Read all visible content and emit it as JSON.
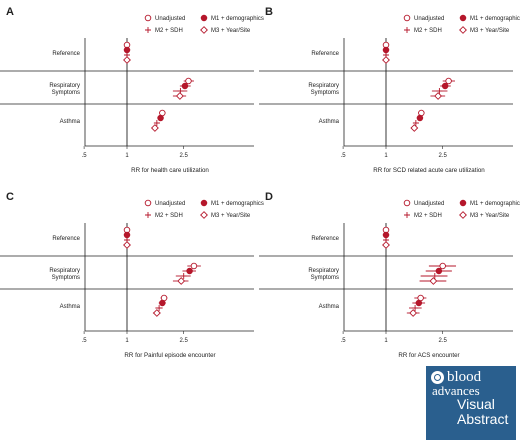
{
  "colors": {
    "accent": "#b5172b",
    "axis": "#222222",
    "logo_bg": "#2a5f8e"
  },
  "legend": {
    "unadjusted": "Unadjusted",
    "m1": "M1 + demographics",
    "m2": "M2 + SDH",
    "m3": "M3 + Year/Site"
  },
  "logo": {
    "word": "blood",
    "sub": "advances",
    "line1": "Visual",
    "line2": "Abstract"
  },
  "chart_data": [
    {
      "type": "scatter",
      "panel": "A",
      "xlabel": "RR for health care utilization",
      "xscale": "log",
      "xticks": [
        ".5",
        "1",
        "2.5"
      ],
      "categories": [
        "Reference",
        "Respiratory Symptoms",
        "Asthma"
      ],
      "reference_line": 1,
      "series": [
        {
          "name": "Unadjusted",
          "marker": "open-circle",
          "values": [
            1,
            2.7,
            1.77
          ],
          "ci": [
            [
              1,
              1
            ],
            [
              2.5,
              2.95
            ],
            [
              1.7,
              1.85
            ]
          ]
        },
        {
          "name": "M1 + demographics",
          "marker": "filled-circle",
          "values": [
            1,
            2.55,
            1.72
          ],
          "ci": [
            [
              1,
              1
            ],
            [
              2.35,
              2.8
            ],
            [
              1.65,
              1.8
            ]
          ]
        },
        {
          "name": "M2 + SDH",
          "marker": "plus",
          "values": [
            1,
            2.37,
            1.62
          ],
          "ci": [
            [
              1,
              1
            ],
            [
              2.1,
              2.65
            ],
            [
              1.55,
              1.7
            ]
          ]
        },
        {
          "name": "M3 + Year/Site",
          "marker": "open-diamond",
          "values": [
            1,
            2.35,
            1.57
          ],
          "ci": [
            [
              1,
              1
            ],
            [
              2.1,
              2.6
            ],
            [
              1.5,
              1.65
            ]
          ]
        }
      ]
    },
    {
      "type": "scatter",
      "panel": "B",
      "xlabel": "RR for SCD related acute care utilization",
      "xscale": "log",
      "xticks": [
        ".5",
        "1",
        "2.5"
      ],
      "categories": [
        "Reference",
        "Respiratory Symptoms",
        "Asthma"
      ],
      "reference_line": 1,
      "series": [
        {
          "name": "Unadjusted",
          "marker": "open-circle",
          "values": [
            1,
            2.75,
            1.77
          ],
          "ci": [
            [
              1,
              1
            ],
            [
              2.5,
              3.05
            ],
            [
              1.7,
              1.85
            ]
          ]
        },
        {
          "name": "M1 + demographics",
          "marker": "filled-circle",
          "values": [
            1,
            2.6,
            1.73
          ],
          "ci": [
            [
              1,
              1
            ],
            [
              2.4,
              2.85
            ],
            [
              1.65,
              1.8
            ]
          ]
        },
        {
          "name": "M2 + SDH",
          "marker": "plus",
          "values": [
            1,
            2.37,
            1.62
          ],
          "ci": [
            [
              1,
              1
            ],
            [
              2.1,
              2.7
            ],
            [
              1.55,
              1.7
            ]
          ]
        },
        {
          "name": "M3 + Year/Site",
          "marker": "open-diamond",
          "values": [
            1,
            2.32,
            1.58
          ],
          "ci": [
            [
              1,
              1
            ],
            [
              2.05,
              2.6
            ],
            [
              1.5,
              1.65
            ]
          ]
        }
      ]
    },
    {
      "type": "scatter",
      "panel": "C",
      "xlabel": "RR for Painful episode encounter",
      "xscale": "log",
      "xticks": [
        ".5",
        "1",
        "2.5"
      ],
      "categories": [
        "Reference",
        "Respiratory Symptoms",
        "Asthma"
      ],
      "reference_line": 1,
      "series": [
        {
          "name": "Unadjusted",
          "marker": "open-circle",
          "values": [
            1,
            2.95,
            1.82
          ],
          "ci": [
            [
              1,
              1
            ],
            [
              2.65,
              3.3
            ],
            [
              1.72,
              1.92
            ]
          ]
        },
        {
          "name": "M1 + demographics",
          "marker": "filled-circle",
          "values": [
            1,
            2.75,
            1.77
          ],
          "ci": [
            [
              1,
              1
            ],
            [
              2.45,
              3.05
            ],
            [
              1.67,
              1.87
            ]
          ]
        },
        {
          "name": "M2 + SDH",
          "marker": "plus",
          "values": [
            1,
            2.5,
            1.68
          ],
          "ci": [
            [
              1,
              1
            ],
            [
              2.2,
              2.8
            ],
            [
              1.58,
              1.78
            ]
          ]
        },
        {
          "name": "M3 + Year/Site",
          "marker": "open-diamond",
          "values": [
            1,
            2.4,
            1.62
          ],
          "ci": [
            [
              1,
              1
            ],
            [
              2.1,
              2.7
            ],
            [
              1.52,
              1.72
            ]
          ]
        }
      ]
    },
    {
      "type": "scatter",
      "panel": "D",
      "xlabel": "RR for ACS encounter",
      "xscale": "log",
      "xticks": [
        ".5",
        "1",
        "2.5"
      ],
      "categories": [
        "Reference",
        "Respiratory Symptoms",
        "Asthma"
      ],
      "reference_line": 1,
      "series": [
        {
          "name": "Unadjusted",
          "marker": "open-circle",
          "values": [
            1,
            2.5,
            1.75
          ],
          "ci": [
            [
              1,
              1
            ],
            [
              2.0,
              3.1
            ],
            [
              1.58,
              1.92
            ]
          ]
        },
        {
          "name": "M1 + demographics",
          "marker": "filled-circle",
          "values": [
            1,
            2.35,
            1.7
          ],
          "ci": [
            [
              1,
              1
            ],
            [
              1.9,
              2.9
            ],
            [
              1.53,
              1.88
            ]
          ]
        },
        {
          "name": "M2 + SDH",
          "marker": "plus",
          "values": [
            1,
            2.2,
            1.6
          ],
          "ci": [
            [
              1,
              1
            ],
            [
              1.75,
              2.7
            ],
            [
              1.45,
              1.78
            ]
          ]
        },
        {
          "name": "M3 + Year/Site",
          "marker": "open-diamond",
          "values": [
            1,
            2.15,
            1.55
          ],
          "ci": [
            [
              1,
              1
            ],
            [
              1.72,
              2.65
            ],
            [
              1.4,
              1.72
            ]
          ]
        }
      ]
    }
  ]
}
